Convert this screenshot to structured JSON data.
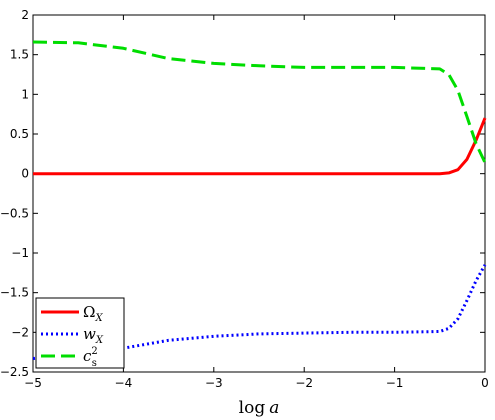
{
  "chart_data": {
    "type": "line",
    "xlabel": "log a",
    "ylabel": "",
    "title": "",
    "xlim": [
      -5,
      0
    ],
    "ylim": [
      -2.5,
      2
    ],
    "xticks": [
      -5,
      -4,
      -3,
      -2,
      -1,
      0
    ],
    "yticks": [
      -2.5,
      -2,
      -1.5,
      -1,
      -0.5,
      0,
      0.5,
      1,
      1.5,
      2
    ],
    "grid": false,
    "legend_position": "bottom-left",
    "series": [
      {
        "name": "Ω_X",
        "color": "#ff0000",
        "dash": "solid",
        "x": [
          -5,
          -4,
          -3,
          -2,
          -1,
          -0.5,
          -0.4,
          -0.3,
          -0.2,
          -0.1,
          0
        ],
        "y": [
          0,
          0,
          0,
          0,
          0,
          0.0,
          0.01,
          0.05,
          0.18,
          0.42,
          0.7
        ]
      },
      {
        "name": "w_X",
        "color": "#0000ff",
        "dash": "dotted",
        "x": [
          -5,
          -4.5,
          -4,
          -3.5,
          -3,
          -2.5,
          -2,
          -1.5,
          -1,
          -0.5,
          -0.4,
          -0.3,
          -0.2,
          -0.1,
          0
        ],
        "y": [
          -2.33,
          -2.28,
          -2.2,
          -2.1,
          -2.05,
          -2.02,
          -2.01,
          -2.0,
          -2.0,
          -1.99,
          -1.95,
          -1.83,
          -1.6,
          -1.35,
          -1.15
        ]
      },
      {
        "name": "c_s^2",
        "color": "#00dd00",
        "dash": "dashed",
        "x": [
          -5,
          -4.5,
          -4,
          -3.5,
          -3,
          -2.5,
          -2,
          -1.5,
          -1,
          -0.5,
          -0.4,
          -0.3,
          -0.2,
          -0.1,
          0
        ],
        "y": [
          1.66,
          1.65,
          1.58,
          1.45,
          1.39,
          1.36,
          1.34,
          1.34,
          1.34,
          1.32,
          1.25,
          1.05,
          0.72,
          0.38,
          0.14
        ]
      }
    ]
  },
  "legend": {
    "items": [
      {
        "label": "Ω",
        "sub": "X",
        "sup": ""
      },
      {
        "label": "w",
        "sub": "X",
        "sup": ""
      },
      {
        "label": "c",
        "sub": "s",
        "sup": "2"
      }
    ]
  }
}
